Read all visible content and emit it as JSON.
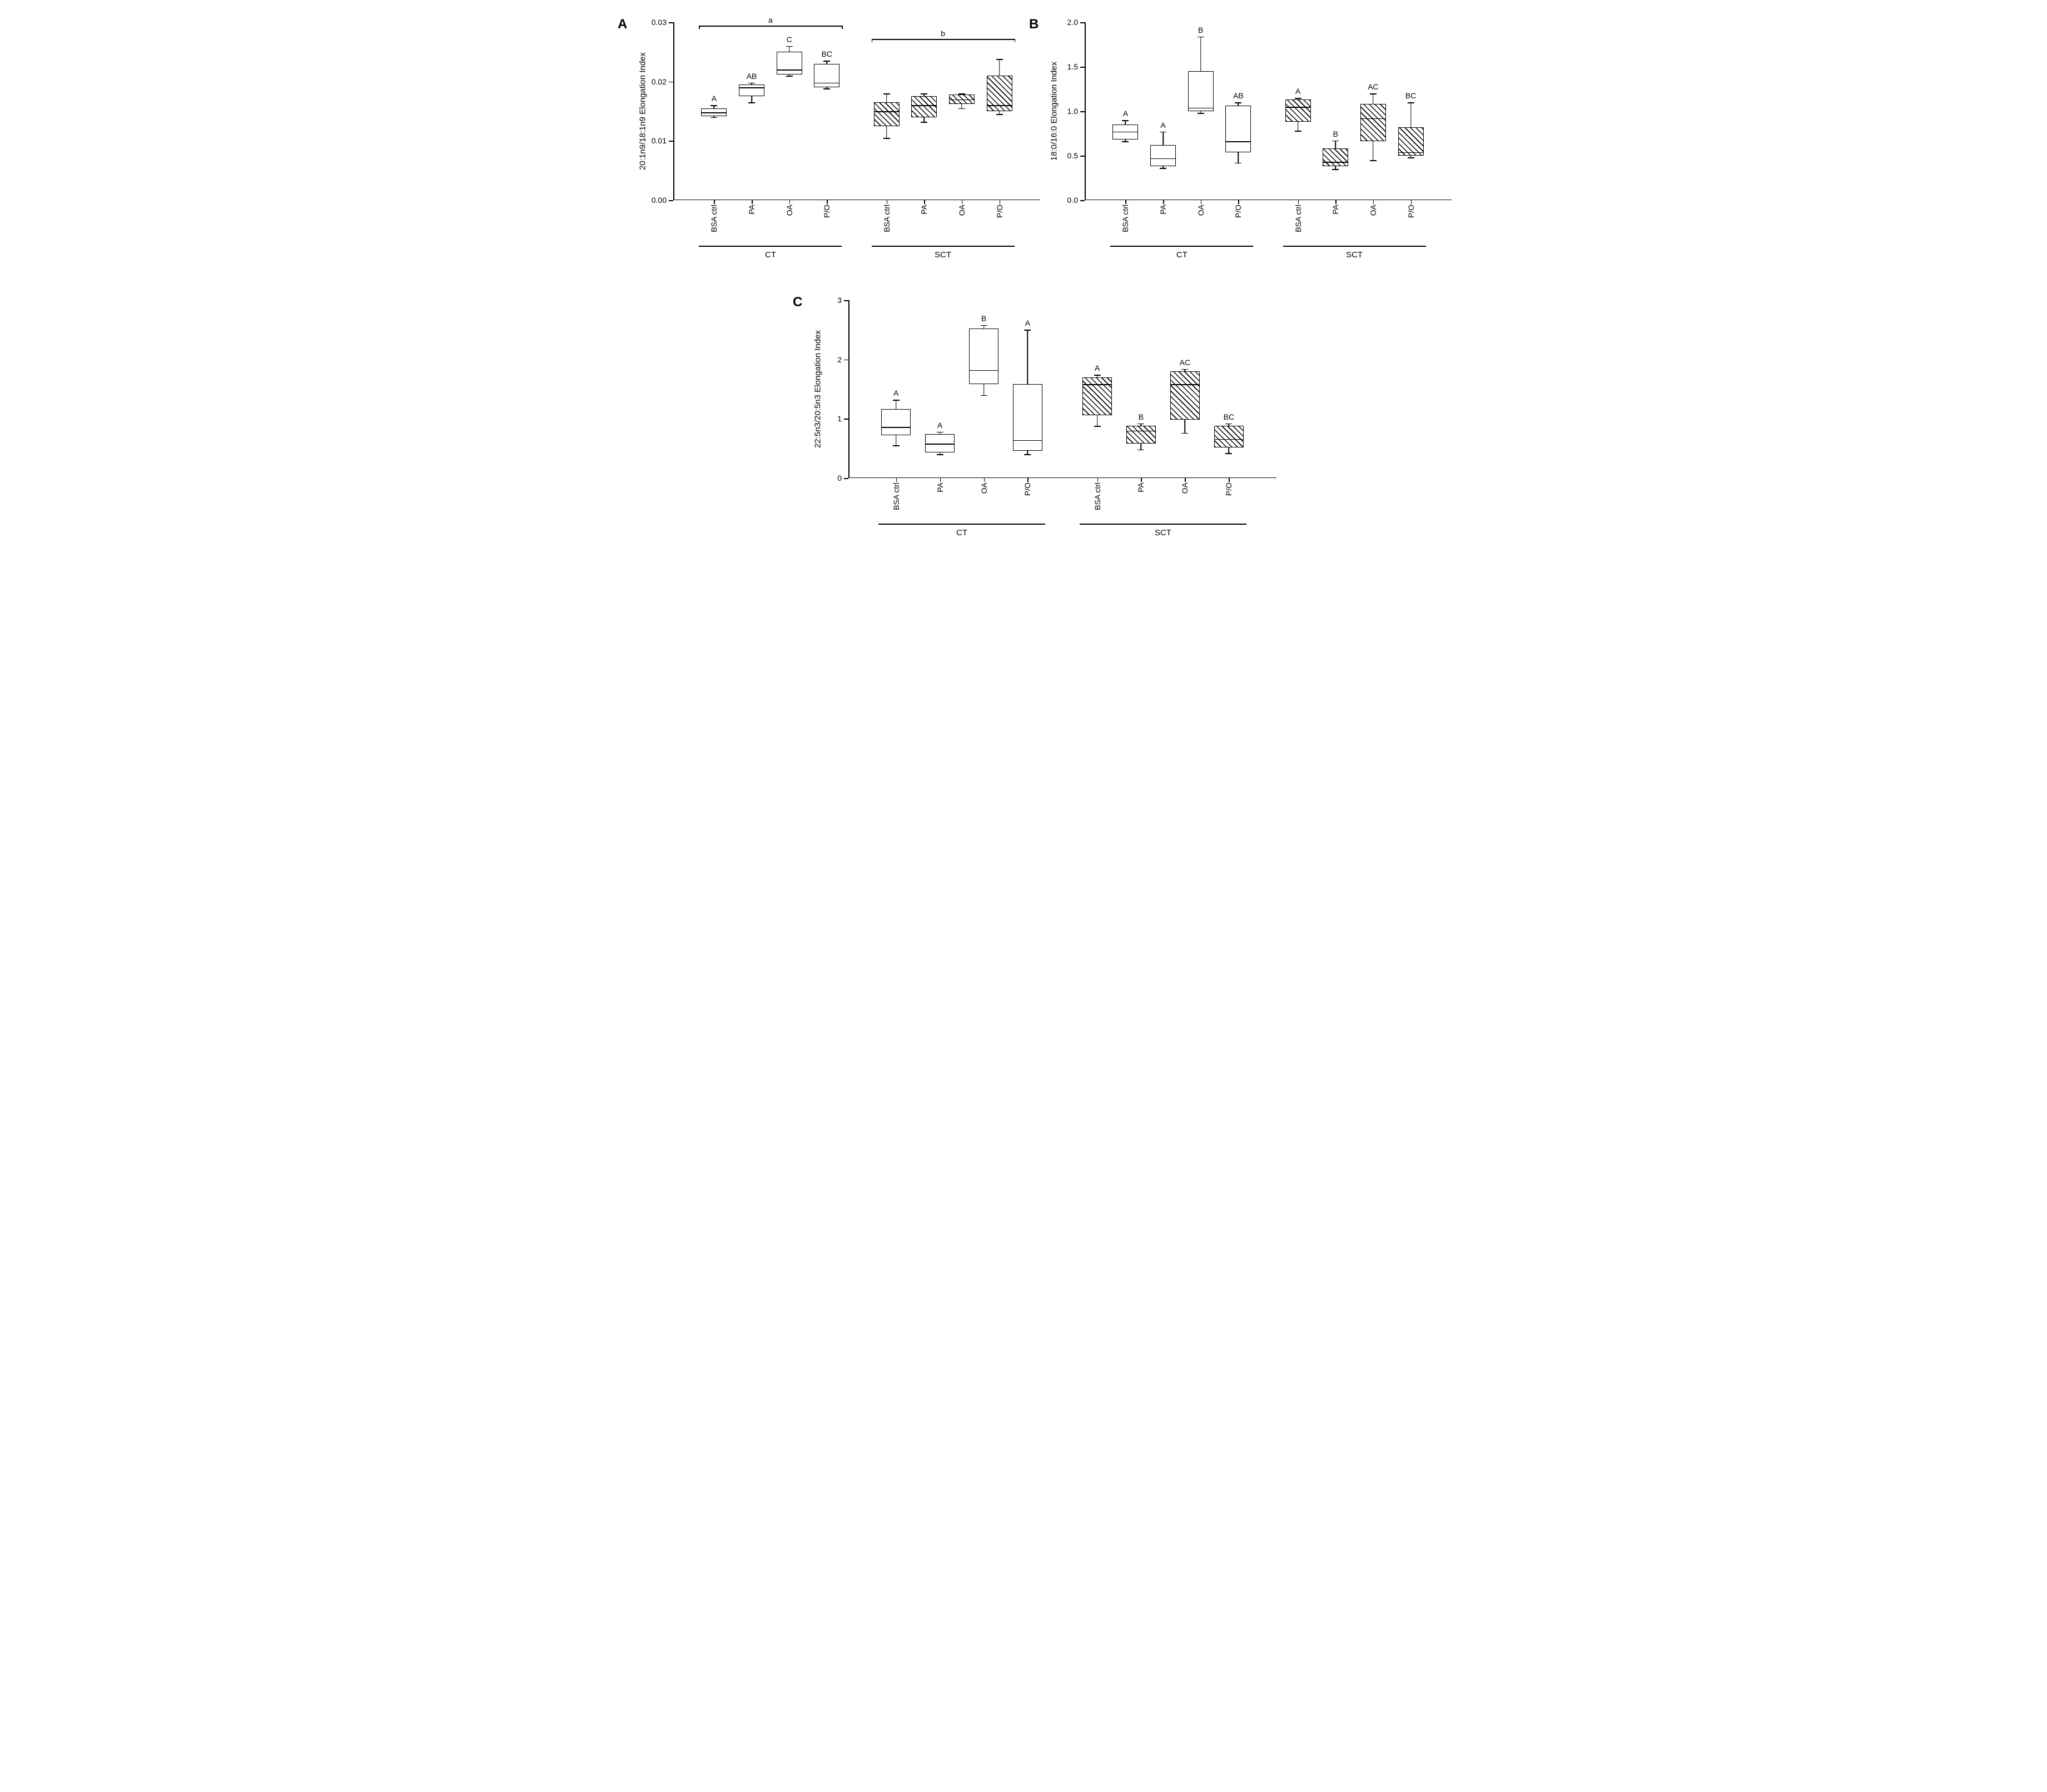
{
  "figure": {
    "background_color": "#ffffff",
    "axis_color": "#000000",
    "font_family": "Arial",
    "panel_label_fontsize": 24,
    "axis_label_fontsize": 15,
    "tick_fontsize": 14,
    "box_border_width": 1.5,
    "hatch_pattern": "diagonal-45"
  },
  "panels": [
    {
      "id": "A",
      "label": "A",
      "y_label": "20:1n9/18:1n9 Elongation Index",
      "ylim": [
        0.0,
        0.03
      ],
      "yticks": [
        0.0,
        0.01,
        0.02,
        0.03
      ],
      "ytick_labels": [
        "0.00",
        "0.01",
        "0.02",
        "0.03"
      ],
      "groups": [
        "CT",
        "SCT"
      ],
      "categories": [
        "BSA ctrl",
        "PA",
        "OA",
        "P/O"
      ],
      "group_sig_bars": [
        {
          "group": "CT",
          "label": "a"
        },
        {
          "group": "SCT",
          "label": "b"
        }
      ],
      "boxes": [
        {
          "group": "CT",
          "cat": "BSA ctrl",
          "hatched": false,
          "min": 0.014,
          "q1": 0.0142,
          "median": 0.0148,
          "q3": 0.0155,
          "max": 0.016,
          "sig": "A"
        },
        {
          "group": "CT",
          "cat": "PA",
          "hatched": false,
          "min": 0.0165,
          "q1": 0.0175,
          "median": 0.019,
          "q3": 0.0195,
          "max": 0.0198,
          "sig": "AB"
        },
        {
          "group": "CT",
          "cat": "OA",
          "hatched": false,
          "min": 0.021,
          "q1": 0.0212,
          "median": 0.022,
          "q3": 0.025,
          "max": 0.026,
          "sig": "C"
        },
        {
          "group": "CT",
          "cat": "P/O",
          "hatched": false,
          "min": 0.0188,
          "q1": 0.019,
          "median": 0.0198,
          "q3": 0.023,
          "max": 0.0235,
          "sig": "BC"
        },
        {
          "group": "SCT",
          "cat": "BSA ctrl",
          "hatched": true,
          "min": 0.0105,
          "q1": 0.0125,
          "median": 0.015,
          "q3": 0.0165,
          "max": 0.018,
          "sig": ""
        },
        {
          "group": "SCT",
          "cat": "PA",
          "hatched": true,
          "min": 0.0132,
          "q1": 0.014,
          "median": 0.016,
          "q3": 0.0175,
          "max": 0.018,
          "sig": ""
        },
        {
          "group": "SCT",
          "cat": "OA",
          "hatched": true,
          "min": 0.0155,
          "q1": 0.0162,
          "median": 0.017,
          "q3": 0.0178,
          "max": 0.018,
          "sig": ""
        },
        {
          "group": "SCT",
          "cat": "P/O",
          "hatched": true,
          "min": 0.0145,
          "q1": 0.015,
          "median": 0.016,
          "q3": 0.021,
          "max": 0.0238,
          "sig": ""
        }
      ]
    },
    {
      "id": "B",
      "label": "B",
      "y_label": "18:0/16:0 Elongation Index",
      "ylim": [
        0.0,
        2.0
      ],
      "yticks": [
        0.0,
        0.5,
        1.0,
        1.5,
        2.0
      ],
      "ytick_labels": [
        "0.0",
        "0.5",
        "1.0",
        "1.5",
        "2.0"
      ],
      "groups": [
        "CT",
        "SCT"
      ],
      "categories": [
        "BSA ctrl",
        "PA",
        "OA",
        "P/O"
      ],
      "group_sig_bars": [],
      "boxes": [
        {
          "group": "CT",
          "cat": "BSA ctrl",
          "hatched": false,
          "min": 0.66,
          "q1": 0.68,
          "median": 0.77,
          "q3": 0.85,
          "max": 0.9,
          "sig": "A"
        },
        {
          "group": "CT",
          "cat": "PA",
          "hatched": false,
          "min": 0.36,
          "q1": 0.38,
          "median": 0.47,
          "q3": 0.62,
          "max": 0.77,
          "sig": "A"
        },
        {
          "group": "CT",
          "cat": "OA",
          "hatched": false,
          "min": 0.98,
          "q1": 1.0,
          "median": 1.04,
          "q3": 1.45,
          "max": 1.84,
          "sig": "B"
        },
        {
          "group": "CT",
          "cat": "P/O",
          "hatched": false,
          "min": 0.42,
          "q1": 0.54,
          "median": 0.66,
          "q3": 1.06,
          "max": 1.1,
          "sig": "AB"
        },
        {
          "group": "SCT",
          "cat": "BSA ctrl",
          "hatched": true,
          "min": 0.78,
          "q1": 0.88,
          "median": 1.05,
          "q3": 1.13,
          "max": 1.15,
          "sig": "A"
        },
        {
          "group": "SCT",
          "cat": "PA",
          "hatched": true,
          "min": 0.35,
          "q1": 0.38,
          "median": 0.43,
          "q3": 0.58,
          "max": 0.67,
          "sig": "B"
        },
        {
          "group": "SCT",
          "cat": "OA",
          "hatched": true,
          "min": 0.45,
          "q1": 0.66,
          "median": 0.92,
          "q3": 1.08,
          "max": 1.2,
          "sig": "AC"
        },
        {
          "group": "SCT",
          "cat": "P/O",
          "hatched": true,
          "min": 0.48,
          "q1": 0.5,
          "median": 0.54,
          "q3": 0.82,
          "max": 1.1,
          "sig": "BC"
        }
      ]
    },
    {
      "id": "C",
      "label": "C",
      "y_label": "22:5n3/20:5n3 Elongation Index",
      "ylim": [
        0,
        3
      ],
      "yticks": [
        0,
        1,
        2,
        3
      ],
      "ytick_labels": [
        "0",
        "1",
        "2",
        "3"
      ],
      "groups": [
        "CT",
        "SCT"
      ],
      "categories": [
        "BSA ctrl",
        "PA",
        "OA",
        "P/O"
      ],
      "group_sig_bars": [],
      "boxes": [
        {
          "group": "CT",
          "cat": "BSA ctrl",
          "hatched": false,
          "min": 0.55,
          "q1": 0.72,
          "median": 0.86,
          "q3": 1.16,
          "max": 1.32,
          "sig": "A"
        },
        {
          "group": "CT",
          "cat": "PA",
          "hatched": false,
          "min": 0.4,
          "q1": 0.43,
          "median": 0.58,
          "q3": 0.74,
          "max": 0.78,
          "sig": "A"
        },
        {
          "group": "CT",
          "cat": "OA",
          "hatched": false,
          "min": 1.4,
          "q1": 1.58,
          "median": 1.82,
          "q3": 2.52,
          "max": 2.58,
          "sig": "B"
        },
        {
          "group": "CT",
          "cat": "P/O",
          "hatched": false,
          "min": 0.4,
          "q1": 0.46,
          "median": 0.64,
          "q3": 1.58,
          "max": 2.5,
          "sig": "A"
        },
        {
          "group": "SCT",
          "cat": "BSA ctrl",
          "hatched": true,
          "min": 0.88,
          "q1": 1.06,
          "median": 1.58,
          "q3": 1.7,
          "max": 1.74,
          "sig": "A"
        },
        {
          "group": "SCT",
          "cat": "PA",
          "hatched": true,
          "min": 0.48,
          "q1": 0.58,
          "median": 0.8,
          "q3": 0.88,
          "max": 0.92,
          "sig": "B"
        },
        {
          "group": "SCT",
          "cat": "OA",
          "hatched": true,
          "min": 0.76,
          "q1": 0.98,
          "median": 1.58,
          "q3": 1.8,
          "max": 1.84,
          "sig": "AC"
        },
        {
          "group": "SCT",
          "cat": "P/O",
          "hatched": true,
          "min": 0.42,
          "q1": 0.52,
          "median": 0.66,
          "q3": 0.88,
          "max": 0.92,
          "sig": "BC"
        }
      ]
    }
  ]
}
